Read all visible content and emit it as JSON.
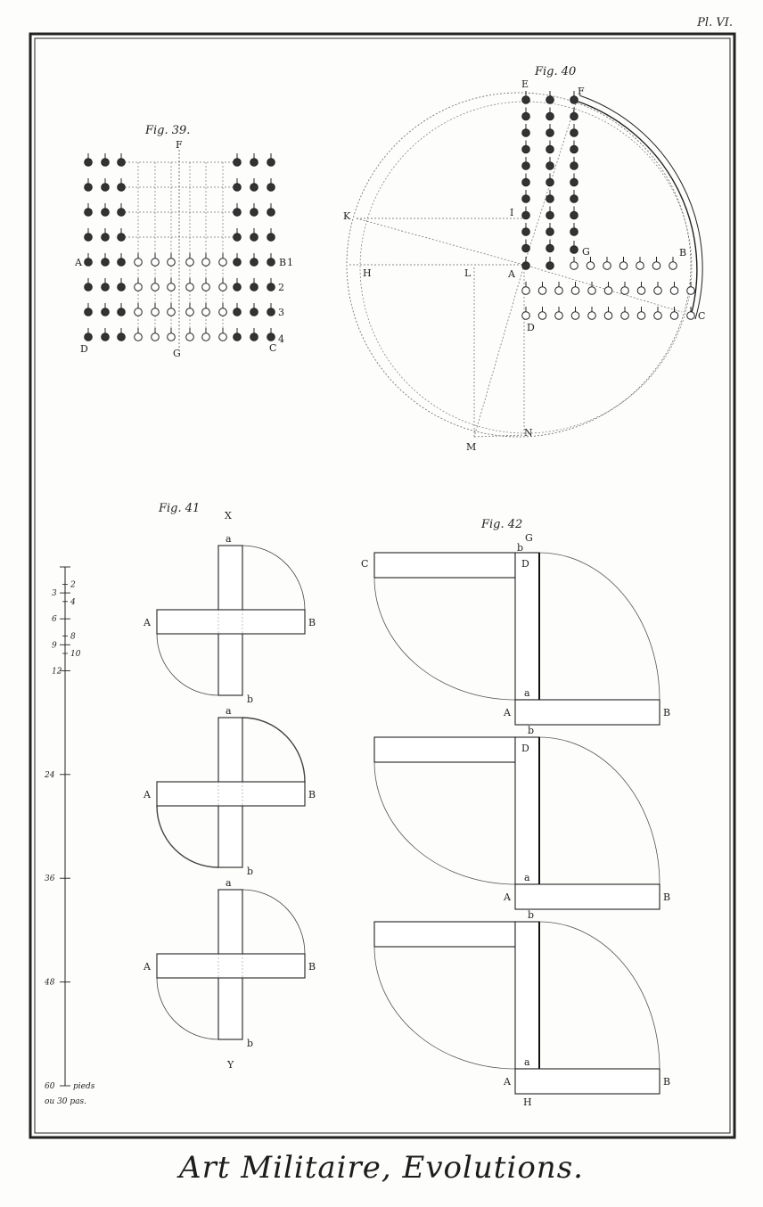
{
  "plate_number": "Pl. VI.",
  "title": "Art Militaire, Evolutions.",
  "fig39": {
    "caption": "Fig. 39.",
    "labels": {
      "F": "F",
      "G": "G",
      "A": "A",
      "D": "D",
      "B": "B",
      "C": "C"
    },
    "row_numbers": [
      "1",
      "2",
      "3",
      "4"
    ]
  },
  "fig40": {
    "caption": "Fig. 40",
    "labels": {
      "E": "E",
      "F": "F",
      "K": "K",
      "I": "I",
      "H": "H",
      "L": "L",
      "A": "A",
      "G": "G",
      "B": "B",
      "C": "C",
      "D": "D",
      "M": "M",
      "N": "N"
    }
  },
  "fig41": {
    "caption": "Fig. 41",
    "labels": {
      "X": "X",
      "a": "a",
      "A": "A",
      "B": "B",
      "b": "b",
      "Y": "Y"
    }
  },
  "fig42": {
    "caption": "Fig. 42",
    "labels": {
      "b": "b",
      "G": "G",
      "C": "C",
      "D": "D",
      "a": "a",
      "A": "A",
      "B": "B",
      "H": "H"
    }
  },
  "scale": {
    "ticks_left": [
      "3",
      "6",
      "9",
      "12",
      "24",
      "36",
      "48"
    ],
    "ticks_right": [
      "2",
      "4",
      "8",
      "10"
    ],
    "end_label": "60",
    "unit_line1": "pieds",
    "unit_line2": "ou 30 pas."
  }
}
